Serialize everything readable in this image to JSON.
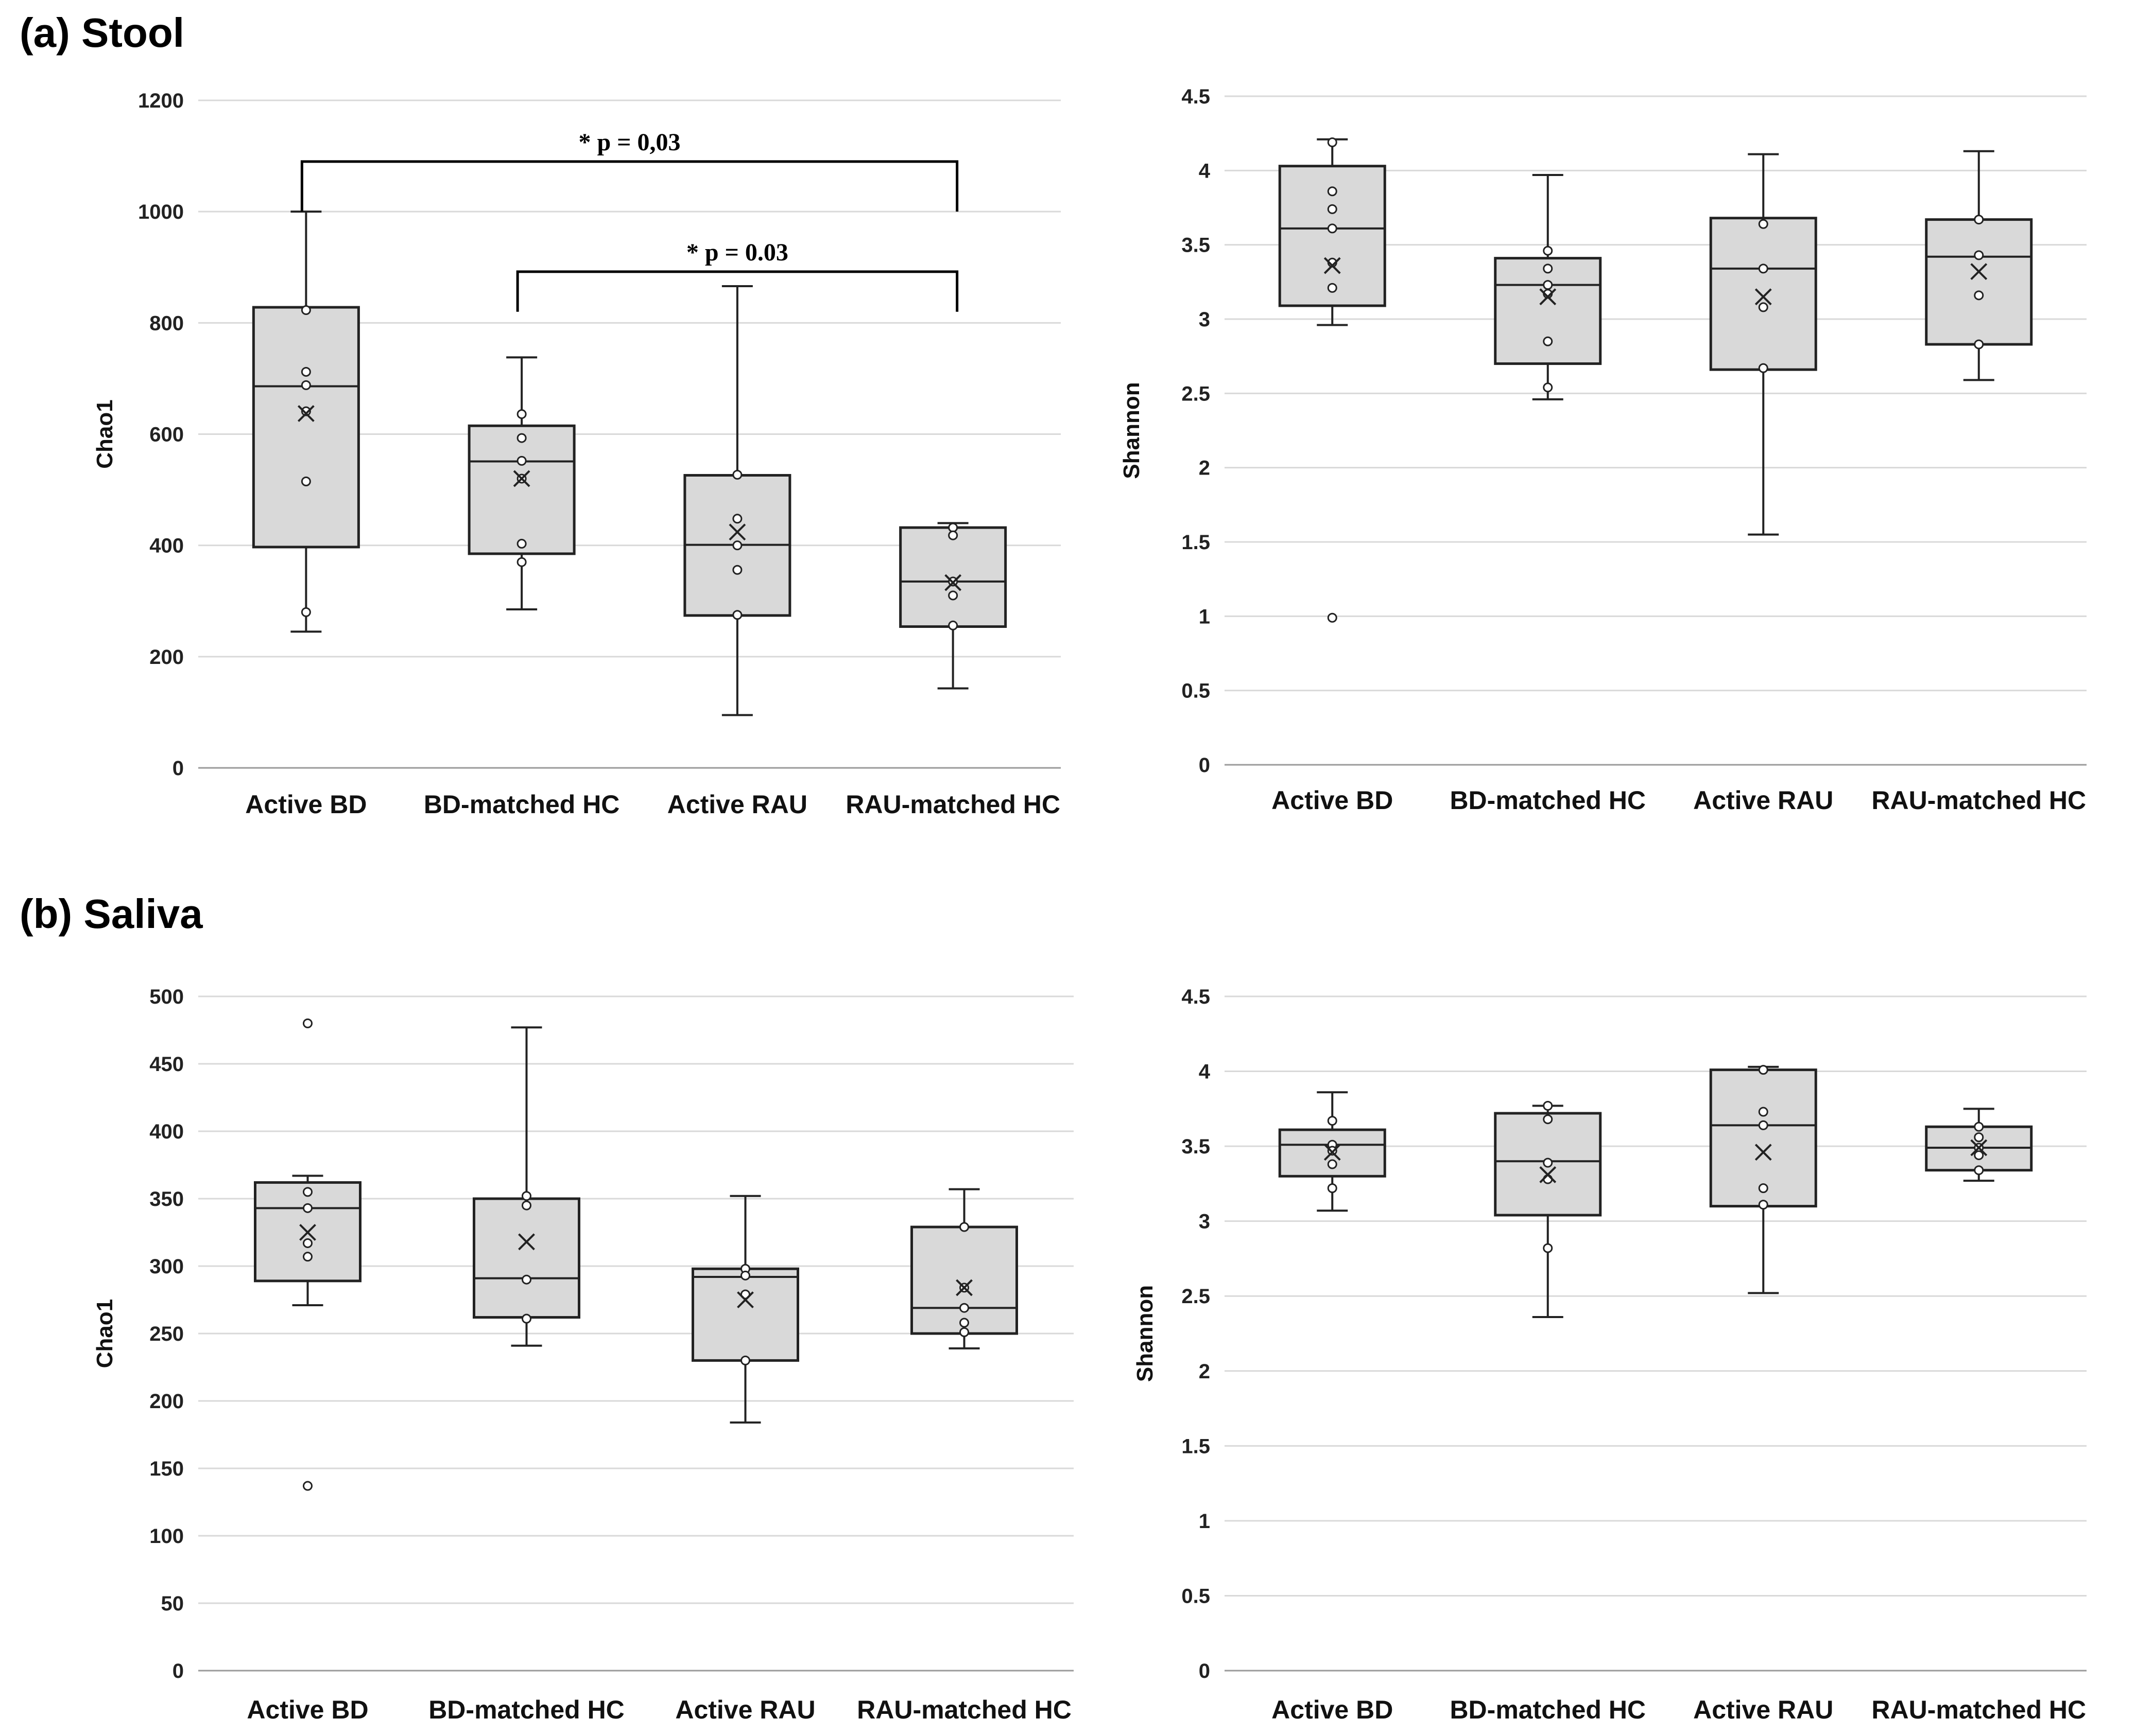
{
  "sections": {
    "a_title": "(a) Stool",
    "b_title": "(b) Saliva"
  },
  "chart_data": [
    {
      "id": "chart-a-chao",
      "type": "box",
      "ylabel": "Chao1",
      "ylim": [
        0,
        1200
      ],
      "yticks": [
        0,
        200,
        400,
        600,
        800,
        1000,
        1200
      ],
      "categories": [
        "Active BD",
        "BD-matched HC",
        "Active RAU",
        "RAU-matched HC"
      ],
      "boxes": [
        {
          "whisker_low": 245,
          "q1": 397,
          "median": 686,
          "q3": 828,
          "whisker_high": 1000,
          "mean": 637,
          "points": [
            823,
            712,
            688,
            641,
            515,
            280
          ]
        },
        {
          "whisker_low": 285,
          "q1": 385,
          "median": 551,
          "q3": 615,
          "whisker_high": 738,
          "mean": 520,
          "points": [
            636,
            593,
            552,
            520,
            403,
            370
          ]
        },
        {
          "whisker_low": 95,
          "q1": 274,
          "median": 401,
          "q3": 526,
          "whisker_high": 866,
          "mean": 424,
          "points": [
            527,
            448,
            400,
            356,
            275
          ]
        },
        {
          "whisker_low": 143,
          "q1": 254,
          "median": 335,
          "q3": 432,
          "whisker_high": 440,
          "mean": 333,
          "points": [
            432,
            418,
            335,
            310,
            256
          ]
        }
      ],
      "annotations": [
        {
          "label": "* p = 0,03",
          "from": 0,
          "to": 3,
          "level": 1090,
          "drop_left": 1000,
          "drop_right": 1000
        },
        {
          "label": "* p = 0.03",
          "from": 1,
          "to": 3,
          "level": 892,
          "drop_left": 820,
          "drop_right": 820
        }
      ]
    },
    {
      "id": "chart-a-shan",
      "type": "box",
      "ylabel": "Shannon",
      "ylim": [
        0,
        4.5
      ],
      "yticks": [
        0,
        0.5,
        1,
        1.5,
        2,
        2.5,
        3,
        3.5,
        4,
        4.5
      ],
      "categories": [
        "Active BD",
        "BD-matched HC",
        "Active RAU",
        "RAU-matched HC"
      ],
      "boxes": [
        {
          "whisker_low": 2.96,
          "q1": 3.09,
          "median": 3.61,
          "q3": 4.03,
          "whisker_high": 4.21,
          "mean": 3.36,
          "points": [
            4.19,
            3.86,
            3.74,
            3.61,
            3.38,
            3.21,
            0.99
          ]
        },
        {
          "whisker_low": 2.46,
          "q1": 2.7,
          "median": 3.23,
          "q3": 3.41,
          "whisker_high": 3.97,
          "mean": 3.15,
          "points": [
            3.46,
            3.34,
            3.23,
            3.17,
            2.85,
            2.54
          ]
        },
        {
          "whisker_low": 1.55,
          "q1": 2.66,
          "median": 3.34,
          "q3": 3.68,
          "whisker_high": 4.11,
          "mean": 3.15,
          "points": [
            3.64,
            3.34,
            3.08,
            2.67
          ]
        },
        {
          "whisker_low": 2.59,
          "q1": 2.83,
          "median": 3.42,
          "q3": 3.67,
          "whisker_high": 4.13,
          "mean": 3.32,
          "points": [
            3.67,
            3.43,
            3.16,
            2.83
          ]
        }
      ],
      "annotations": []
    },
    {
      "id": "chart-b-chao",
      "type": "box",
      "ylabel": "Chao1",
      "ylim": [
        0,
        500
      ],
      "yticks": [
        0,
        50,
        100,
        150,
        200,
        250,
        300,
        350,
        400,
        450,
        500
      ],
      "categories": [
        "Active BD",
        "BD-matched HC",
        "Active RAU",
        "RAU-matched HC"
      ],
      "boxes": [
        {
          "whisker_low": 271,
          "q1": 289,
          "median": 343,
          "q3": 362,
          "whisker_high": 367,
          "mean": 325,
          "points": [
            480,
            355,
            343,
            317,
            307,
            137
          ]
        },
        {
          "whisker_low": 241,
          "q1": 262,
          "median": 291,
          "q3": 350,
          "whisker_high": 477,
          "mean": 318,
          "points": [
            352,
            345,
            290,
            261
          ]
        },
        {
          "whisker_low": 184,
          "q1": 230,
          "median": 292,
          "q3": 298,
          "whisker_high": 352,
          "mean": 275,
          "points": [
            298,
            293,
            279,
            230
          ]
        },
        {
          "whisker_low": 239,
          "q1": 250,
          "median": 269,
          "q3": 329,
          "whisker_high": 357,
          "mean": 284,
          "points": [
            329,
            284,
            269,
            258,
            251
          ]
        }
      ],
      "annotations": []
    },
    {
      "id": "chart-b-shan",
      "type": "box",
      "ylabel": "Shannon",
      "ylim": [
        0,
        4.5
      ],
      "yticks": [
        0,
        0.5,
        1,
        1.5,
        2,
        2.5,
        3,
        3.5,
        4,
        4.5
      ],
      "categories": [
        "Active BD",
        "BD-matched HC",
        "Active RAU",
        "RAU-matched HC"
      ],
      "boxes": [
        {
          "whisker_low": 3.07,
          "q1": 3.3,
          "median": 3.51,
          "q3": 3.61,
          "whisker_high": 3.86,
          "mean": 3.46,
          "points": [
            3.67,
            3.51,
            3.47,
            3.38,
            3.22
          ]
        },
        {
          "whisker_low": 2.36,
          "q1": 3.04,
          "median": 3.4,
          "q3": 3.72,
          "whisker_high": 3.77,
          "mean": 3.31,
          "points": [
            3.77,
            3.68,
            3.39,
            3.28,
            2.82
          ]
        },
        {
          "whisker_low": 2.52,
          "q1": 3.1,
          "median": 3.64,
          "q3": 4.01,
          "whisker_high": 4.03,
          "mean": 3.46,
          "points": [
            4.01,
            3.73,
            3.64,
            3.22,
            3.11
          ]
        },
        {
          "whisker_low": 3.27,
          "q1": 3.34,
          "median": 3.49,
          "q3": 3.63,
          "whisker_high": 3.75,
          "mean": 3.49,
          "points": [
            3.63,
            3.56,
            3.49,
            3.44,
            3.34
          ]
        }
      ],
      "annotations": []
    }
  ]
}
